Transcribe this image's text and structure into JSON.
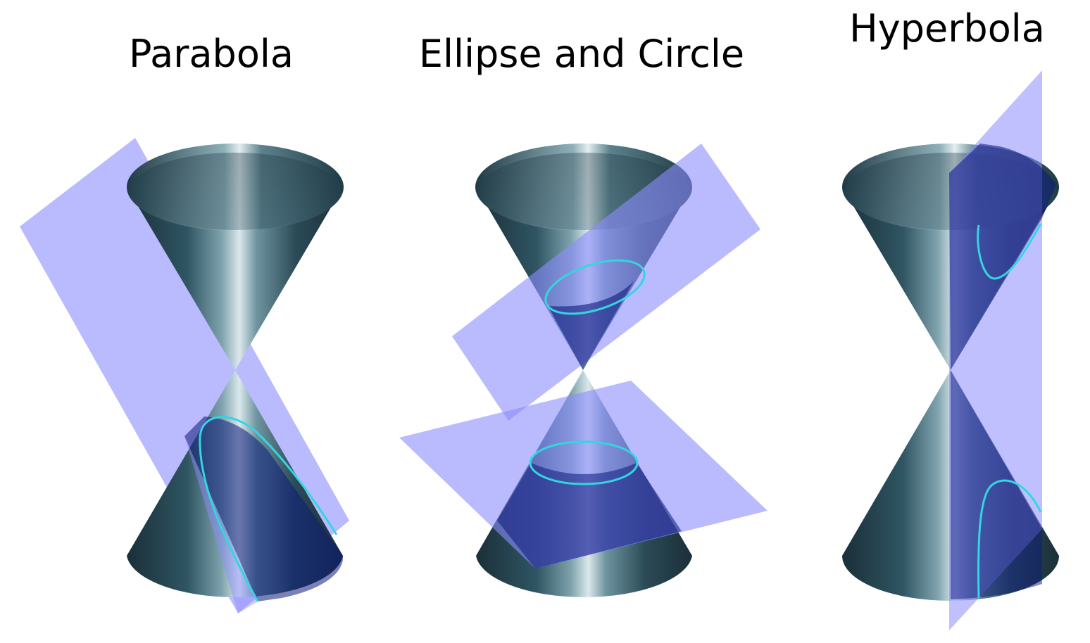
{
  "panels": [
    {
      "id": "parabola",
      "title": "Parabola",
      "curve": "parabola"
    },
    {
      "id": "ellipse",
      "title": "Ellipse and Circle",
      "curve": "ellipse and circle"
    },
    {
      "id": "hyperbola",
      "title": "Hyperbola",
      "curve": "hyperbola"
    }
  ],
  "colors": {
    "background": "#ffffff",
    "cone_dark": "#1a2f38",
    "cone_mid": "#3c6674",
    "cone_highlight": "#d8e6ea",
    "plane": "#8c8cff",
    "plane_overlap": "#0d1a7a",
    "curve": "#33d6e0"
  }
}
